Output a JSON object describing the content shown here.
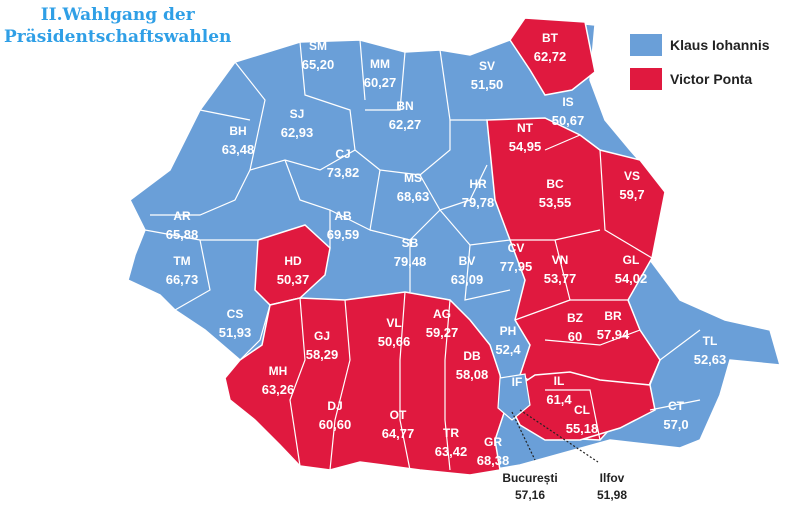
{
  "title": {
    "line1": "II.Wahlgang der",
    "line2": "Präsidentschaftswahlen"
  },
  "colors": {
    "iohannis": "#6a9fd8",
    "ponta": "#e0193f",
    "title": "#2f9fe6",
    "border": "#ffffff"
  },
  "legend": [
    {
      "label": "Klaus Iohannis",
      "party": "iohannis"
    },
    {
      "label": "Victor Ponta",
      "party": "ponta"
    }
  ],
  "counties": [
    {
      "code": "SM",
      "value": "65,20",
      "winner": "iohannis"
    },
    {
      "code": "MM",
      "value": "60,27",
      "winner": "iohannis"
    },
    {
      "code": "SV",
      "value": "51,50",
      "winner": "iohannis"
    },
    {
      "code": "BT",
      "value": "62,72",
      "winner": "ponta"
    },
    {
      "code": "SJ",
      "value": "62,93",
      "winner": "iohannis"
    },
    {
      "code": "BN",
      "value": "62,27",
      "winner": "iohannis"
    },
    {
      "code": "IS",
      "value": "50,67",
      "winner": "iohannis"
    },
    {
      "code": "BH",
      "value": "63,48",
      "winner": "iohannis"
    },
    {
      "code": "CJ",
      "value": "73,82",
      "winner": "iohannis"
    },
    {
      "code": "NT",
      "value": "54,95",
      "winner": "ponta"
    },
    {
      "code": "MS",
      "value": "68,63",
      "winner": "iohannis"
    },
    {
      "code": "HR",
      "value": "79,78",
      "winner": "iohannis"
    },
    {
      "code": "BC",
      "value": "53,55",
      "winner": "ponta"
    },
    {
      "code": "VS",
      "value": "59,7",
      "winner": "ponta"
    },
    {
      "code": "AR",
      "value": "65,88",
      "winner": "iohannis"
    },
    {
      "code": "AB",
      "value": "69,59",
      "winner": "iohannis"
    },
    {
      "code": "SB",
      "value": "79,48",
      "winner": "iohannis"
    },
    {
      "code": "BV",
      "value": "63,09",
      "winner": "iohannis"
    },
    {
      "code": "CV",
      "value": "77,95",
      "winner": "iohannis"
    },
    {
      "code": "VN",
      "value": "53,77",
      "winner": "ponta"
    },
    {
      "code": "GL",
      "value": "54,02",
      "winner": "ponta"
    },
    {
      "code": "TM",
      "value": "66,73",
      "winner": "iohannis"
    },
    {
      "code": "HD",
      "value": "50,37",
      "winner": "ponta"
    },
    {
      "code": "CS",
      "value": "51,93",
      "winner": "iohannis"
    },
    {
      "code": "GJ",
      "value": "58,29",
      "winner": "ponta"
    },
    {
      "code": "VL",
      "value": "50,66",
      "winner": "ponta"
    },
    {
      "code": "AG",
      "value": "59,27",
      "winner": "ponta"
    },
    {
      "code": "PH",
      "value": "52,4",
      "winner": "iohannis"
    },
    {
      "code": "BZ",
      "value": "60",
      "winner": "ponta"
    },
    {
      "code": "BR",
      "value": "57,94",
      "winner": "ponta"
    },
    {
      "code": "TL",
      "value": "52,63",
      "winner": "iohannis"
    },
    {
      "code": "MH",
      "value": "63,26",
      "winner": "ponta"
    },
    {
      "code": "DJ",
      "value": "60,60",
      "winner": "ponta"
    },
    {
      "code": "OT",
      "value": "64,77",
      "winner": "ponta"
    },
    {
      "code": "DB",
      "value": "58,08",
      "winner": "ponta"
    },
    {
      "code": "IL",
      "value": "61,4",
      "winner": "ponta"
    },
    {
      "code": "CL",
      "value": "55,18",
      "winner": "ponta"
    },
    {
      "code": "TR",
      "value": "63,42",
      "winner": "ponta"
    },
    {
      "code": "GR",
      "value": "68,38",
      "winner": "ponta"
    },
    {
      "code": "CT",
      "value": "57,0",
      "winner": "iohannis"
    },
    {
      "code": "IF",
      "value": "",
      "winner": "iohannis"
    }
  ],
  "cities": [
    {
      "name": "București",
      "value": "57,16"
    },
    {
      "name": "Ilfov",
      "value": "51,98"
    }
  ]
}
